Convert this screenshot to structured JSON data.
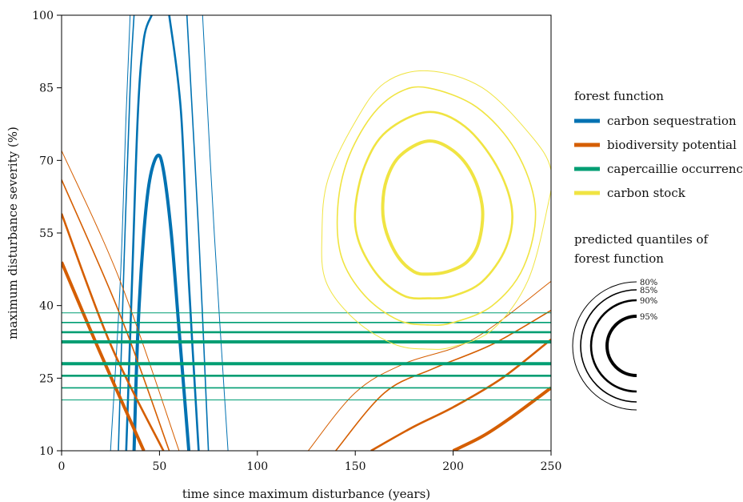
{
  "chart_data": {
    "type": "contour",
    "xlabel": "time since maximum disturbance (years)",
    "ylabel": "maximum disturbance severity (%)",
    "xlim": [
      0,
      250
    ],
    "ylim": [
      10,
      100
    ],
    "xticks": [
      0,
      50,
      100,
      150,
      200,
      250
    ],
    "yticks": [
      10,
      25,
      40,
      55,
      70,
      85,
      100
    ],
    "legend": {
      "title": "forest function",
      "items": [
        {
          "key": "carbon_sequestration",
          "label": "carbon sequestration",
          "color": "#0072B2"
        },
        {
          "key": "biodiversity_potential",
          "label": "biodiversity potential",
          "color": "#D55E00"
        },
        {
          "key": "capercaillie_occurrence",
          "label": "capercaillie occurrence",
          "color": "#009E73"
        },
        {
          "key": "carbon_stock",
          "label": "carbon stock",
          "color": "#F0E442"
        }
      ]
    },
    "quantile_legend": {
      "title_line1": "predicted quantiles of",
      "title_line2": "forest function",
      "quantiles": [
        "80%",
        "85%",
        "90%",
        "95%"
      ]
    },
    "series": [
      {
        "key": "carbon_sequestration",
        "contours": [
          {
            "quantile": "80%",
            "points": [
              [
                25,
                10
              ],
              [
                30,
                45
              ],
              [
                33,
                80
              ],
              [
                35,
                100
              ]
            ]
          },
          {
            "quantile": "80%",
            "points": [
              [
                72,
                100
              ],
              [
                78,
                55
              ],
              [
                85,
                10
              ]
            ]
          },
          {
            "quantile": "85%",
            "points": [
              [
                29,
                10
              ],
              [
                32,
                50
              ],
              [
                35,
                85
              ],
              [
                37,
                100
              ]
            ]
          },
          {
            "quantile": "85%",
            "points": [
              [
                64,
                100
              ],
              [
                70,
                55
              ],
              [
                75,
                10
              ]
            ]
          },
          {
            "quantile": "90%",
            "points": [
              [
                33,
                10
              ],
              [
                36,
                45
              ],
              [
                39,
                80
              ],
              [
                42,
                95
              ],
              [
                46,
                100
              ]
            ]
          },
          {
            "quantile": "90%",
            "points": [
              [
                55,
                100
              ],
              [
                61,
                80
              ],
              [
                65,
                45
              ],
              [
                70,
                10
              ]
            ]
          },
          {
            "quantile": "95%",
            "points": [
              [
                37,
                10
              ],
              [
                39,
                35
              ],
              [
                42,
                55
              ],
              [
                45,
                66
              ],
              [
                49,
                71
              ],
              [
                52,
                68
              ],
              [
                56,
                55
              ],
              [
                60,
                35
              ],
              [
                65,
                10
              ]
            ]
          }
        ]
      },
      {
        "key": "biodiversity_potential",
        "contours": [
          {
            "quantile": "80%",
            "points": [
              [
                0,
                72
              ],
              [
                30,
                45
              ],
              [
                60,
                10
              ]
            ]
          },
          {
            "quantile": "80%",
            "points": [
              [
                126,
                10
              ],
              [
                150,
                22
              ],
              [
                175,
                28
              ],
              [
                210,
                33
              ],
              [
                250,
                45
              ]
            ]
          },
          {
            "quantile": "85%",
            "points": [
              [
                0,
                66
              ],
              [
                30,
                38
              ],
              [
                55,
                10
              ]
            ]
          },
          {
            "quantile": "85%",
            "points": [
              [
                140,
                10
              ],
              [
                165,
                22
              ],
              [
                190,
                27
              ],
              [
                220,
                32
              ],
              [
                250,
                39
              ]
            ]
          },
          {
            "quantile": "90%",
            "points": [
              [
                0,
                59
              ],
              [
                25,
                32
              ],
              [
                52,
                10
              ]
            ]
          },
          {
            "quantile": "90%",
            "points": [
              [
                158,
                10
              ],
              [
                180,
                15
              ],
              [
                200,
                19
              ],
              [
                225,
                25
              ],
              [
                250,
                33
              ]
            ]
          },
          {
            "quantile": "95%",
            "points": [
              [
                0,
                49
              ],
              [
                20,
                30
              ],
              [
                42,
                10
              ]
            ]
          },
          {
            "quantile": "95%",
            "points": [
              [
                200,
                10
              ],
              [
                215,
                13
              ],
              [
                230,
                17
              ],
              [
                250,
                23
              ]
            ]
          }
        ]
      },
      {
        "key": "capercaillie_occurrence",
        "contours": [
          {
            "quantile": "80%",
            "points": [
              [
                0,
                38.5
              ],
              [
                250,
                38.5
              ]
            ]
          },
          {
            "quantile": "80%",
            "points": [
              [
                0,
                20.5
              ],
              [
                250,
                20.5
              ]
            ]
          },
          {
            "quantile": "85%",
            "points": [
              [
                0,
                36.5
              ],
              [
                250,
                36.5
              ]
            ]
          },
          {
            "quantile": "85%",
            "points": [
              [
                0,
                23
              ],
              [
                250,
                23
              ]
            ]
          },
          {
            "quantile": "90%",
            "points": [
              [
                0,
                34.5
              ],
              [
                250,
                34.5
              ]
            ]
          },
          {
            "quantile": "90%",
            "points": [
              [
                0,
                25.5
              ],
              [
                250,
                25.5
              ]
            ]
          },
          {
            "quantile": "95%",
            "points": [
              [
                0,
                32.5
              ],
              [
                250,
                32.5
              ]
            ]
          },
          {
            "quantile": "95%",
            "points": [
              [
                0,
                28
              ],
              [
                250,
                28
              ]
            ]
          }
        ]
      },
      {
        "key": "carbon_stock",
        "contours": [
          {
            "quantile": "80%",
            "closed": true,
            "points": [
              [
                187,
                88.5
              ],
              [
                215,
                85
              ],
              [
                240,
                75
              ],
              [
                250,
                68
              ],
              [
                248,
                60
              ],
              [
                238,
                45
              ],
              [
                220,
                35
              ],
              [
                200,
                31.5
              ],
              [
                187,
                31
              ],
              [
                170,
                32
              ],
              [
                150,
                37
              ],
              [
                135,
                45
              ],
              [
                133,
                55
              ],
              [
                136,
                66
              ],
              [
                150,
                78
              ],
              [
                165,
                86
              ]
            ]
          },
          {
            "quantile": "85%",
            "closed": true,
            "points": [
              [
                187,
                85
              ],
              [
                212,
                81
              ],
              [
                232,
                72
              ],
              [
                242,
                60
              ],
              [
                236,
                48
              ],
              [
                220,
                40
              ],
              [
                200,
                36.5
              ],
              [
                187,
                36
              ],
              [
                172,
                37
              ],
              [
                155,
                42
              ],
              [
                143,
                50
              ],
              [
                141,
                60
              ],
              [
                146,
                70
              ],
              [
                158,
                79
              ],
              [
                172,
                84
              ]
            ]
          },
          {
            "quantile": "90%",
            "closed": true,
            "points": [
              [
                187,
                80
              ],
              [
                206,
                77
              ],
              [
                222,
                69
              ],
              [
                230,
                60
              ],
              [
                227,
                52
              ],
              [
                215,
                45
              ],
              [
                200,
                42
              ],
              [
                187,
                41.5
              ],
              [
                175,
                42
              ],
              [
                162,
                46
              ],
              [
                152,
                53
              ],
              [
                150,
                60
              ],
              [
                155,
                69
              ],
              [
                166,
                76
              ]
            ]
          },
          {
            "quantile": "95%",
            "closed": true,
            "points": [
              [
                187,
                74
              ],
              [
                200,
                72
              ],
              [
                210,
                67
              ],
              [
                215,
                60
              ],
              [
                213,
                53
              ],
              [
                207,
                49
              ],
              [
                197,
                47
              ],
              [
                187,
                46.5
              ],
              [
                180,
                47
              ],
              [
                172,
                50
              ],
              [
                166,
                55
              ],
              [
                164,
                60
              ],
              [
                166,
                66
              ],
              [
                173,
                71
              ]
            ]
          }
        ]
      }
    ]
  }
}
